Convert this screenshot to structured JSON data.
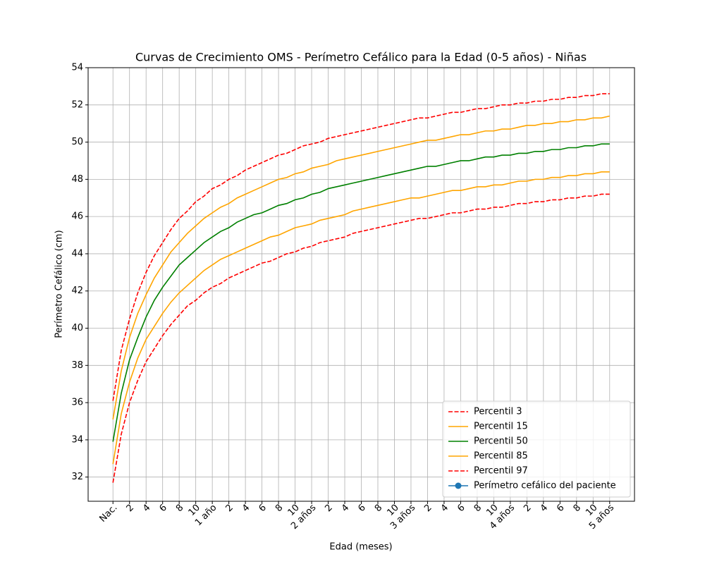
{
  "chart_data": {
    "type": "line",
    "title": "Curvas de Crecimiento OMS - Perímetro Cefálico para la Edad (0-5 años) - Niñas",
    "xlabel": "Edad (meses)",
    "ylabel": "Perímetro Cefálico (cm)",
    "x": [
      0,
      1,
      2,
      3,
      4,
      5,
      6,
      7,
      8,
      9,
      10,
      11,
      12,
      13,
      14,
      15,
      16,
      17,
      18,
      19,
      20,
      21,
      22,
      23,
      24,
      25,
      26,
      27,
      28,
      29,
      30,
      31,
      32,
      33,
      34,
      35,
      36,
      37,
      38,
      39,
      40,
      41,
      42,
      43,
      44,
      45,
      46,
      47,
      48,
      49,
      50,
      51,
      52,
      53,
      54,
      55,
      56,
      57,
      58,
      59,
      60
    ],
    "series": [
      {
        "name": "Percentil 3",
        "color": "#ff0000",
        "linestyle": "dashed",
        "values": [
          31.7,
          34.3,
          36.0,
          37.2,
          38.2,
          38.9,
          39.6,
          40.2,
          40.7,
          41.2,
          41.5,
          41.9,
          42.2,
          42.4,
          42.7,
          42.9,
          43.1,
          43.3,
          43.5,
          43.6,
          43.8,
          44.0,
          44.1,
          44.3,
          44.4,
          44.6,
          44.7,
          44.8,
          44.9,
          45.1,
          45.2,
          45.3,
          45.4,
          45.5,
          45.6,
          45.7,
          45.8,
          45.9,
          45.9,
          46.0,
          46.1,
          46.2,
          46.2,
          46.3,
          46.4,
          46.4,
          46.5,
          46.5,
          46.6,
          46.7,
          46.7,
          46.8,
          46.8,
          46.9,
          46.9,
          47.0,
          47.0,
          47.1,
          47.1,
          47.2,
          47.2
        ]
      },
      {
        "name": "Percentil 15",
        "color": "#ffa500",
        "linestyle": "solid",
        "values": [
          32.7,
          35.4,
          37.1,
          38.4,
          39.4,
          40.1,
          40.8,
          41.4,
          41.9,
          42.3,
          42.7,
          43.1,
          43.4,
          43.7,
          43.9,
          44.1,
          44.3,
          44.5,
          44.7,
          44.9,
          45.0,
          45.2,
          45.4,
          45.5,
          45.6,
          45.8,
          45.9,
          46.0,
          46.1,
          46.3,
          46.4,
          46.5,
          46.6,
          46.7,
          46.8,
          46.9,
          47.0,
          47.0,
          47.1,
          47.2,
          47.3,
          47.4,
          47.4,
          47.5,
          47.6,
          47.6,
          47.7,
          47.7,
          47.8,
          47.9,
          47.9,
          48.0,
          48.0,
          48.1,
          48.1,
          48.2,
          48.2,
          48.3,
          48.3,
          48.4,
          48.4
        ]
      },
      {
        "name": "Percentil 50",
        "color": "#008000",
        "linestyle": "solid",
        "values": [
          33.9,
          36.5,
          38.3,
          39.5,
          40.6,
          41.5,
          42.2,
          42.8,
          43.4,
          43.8,
          44.2,
          44.6,
          44.9,
          45.2,
          45.4,
          45.7,
          45.9,
          46.1,
          46.2,
          46.4,
          46.6,
          46.7,
          46.9,
          47.0,
          47.2,
          47.3,
          47.5,
          47.6,
          47.7,
          47.8,
          47.9,
          48.0,
          48.1,
          48.2,
          48.3,
          48.4,
          48.5,
          48.6,
          48.7,
          48.7,
          48.8,
          48.9,
          49.0,
          49.0,
          49.1,
          49.2,
          49.2,
          49.3,
          49.3,
          49.4,
          49.4,
          49.5,
          49.5,
          49.6,
          49.6,
          49.7,
          49.7,
          49.8,
          49.8,
          49.9,
          49.9
        ]
      },
      {
        "name": "Percentil 85",
        "color": "#ffa500",
        "linestyle": "solid",
        "values": [
          35.1,
          37.7,
          39.5,
          40.8,
          41.8,
          42.7,
          43.4,
          44.1,
          44.6,
          45.1,
          45.5,
          45.9,
          46.2,
          46.5,
          46.7,
          47.0,
          47.2,
          47.4,
          47.6,
          47.8,
          48.0,
          48.1,
          48.3,
          48.4,
          48.6,
          48.7,
          48.8,
          49.0,
          49.1,
          49.2,
          49.3,
          49.4,
          49.5,
          49.6,
          49.7,
          49.8,
          49.9,
          50.0,
          50.1,
          50.1,
          50.2,
          50.3,
          50.4,
          50.4,
          50.5,
          50.6,
          50.6,
          50.7,
          50.7,
          50.8,
          50.9,
          50.9,
          51.0,
          51.0,
          51.1,
          51.1,
          51.2,
          51.2,
          51.3,
          51.3,
          51.4
        ]
      },
      {
        "name": "Percentil 97",
        "color": "#ff0000",
        "linestyle": "dashed",
        "values": [
          36.1,
          38.8,
          40.5,
          41.9,
          43.0,
          43.9,
          44.6,
          45.3,
          45.9,
          46.3,
          46.8,
          47.1,
          47.5,
          47.7,
          48.0,
          48.2,
          48.5,
          48.7,
          48.9,
          49.1,
          49.3,
          49.4,
          49.6,
          49.8,
          49.9,
          50.0,
          50.2,
          50.3,
          50.4,
          50.5,
          50.6,
          50.7,
          50.8,
          50.9,
          51.0,
          51.1,
          51.2,
          51.3,
          51.3,
          51.4,
          51.5,
          51.6,
          51.6,
          51.7,
          51.8,
          51.8,
          51.9,
          52.0,
          52.0,
          52.1,
          52.1,
          52.2,
          52.2,
          52.3,
          52.3,
          52.4,
          52.4,
          52.5,
          52.5,
          52.6,
          52.6
        ]
      },
      {
        "name": "Perímetro cefálico del paciente",
        "color": "#1f77b4",
        "linestyle": "solid",
        "marker": "o",
        "x": [],
        "values": []
      }
    ],
    "xlim": [
      -3,
      63
    ],
    "xticks": [
      {
        "value": 0,
        "label": "Nac."
      },
      2,
      4,
      6,
      8,
      10,
      {
        "value": 12,
        "label": "1 año"
      },
      {
        "value": 14,
        "label": "2"
      },
      {
        "value": 16,
        "label": "4"
      },
      {
        "value": 18,
        "label": "6"
      },
      {
        "value": 20,
        "label": "8"
      },
      {
        "value": 22,
        "label": "10"
      },
      {
        "value": 24,
        "label": "2 años"
      },
      {
        "value": 26,
        "label": "2"
      },
      {
        "value": 28,
        "label": "4"
      },
      {
        "value": 30,
        "label": "6"
      },
      {
        "value": 32,
        "label": "8"
      },
      {
        "value": 34,
        "label": "10"
      },
      {
        "value": 36,
        "label": "3 años"
      },
      {
        "value": 38,
        "label": "2"
      },
      {
        "value": 40,
        "label": "4"
      },
      {
        "value": 42,
        "label": "6"
      },
      {
        "value": 44,
        "label": "8"
      },
      {
        "value": 46,
        "label": "10"
      },
      {
        "value": 48,
        "label": "4 años"
      },
      {
        "value": 50,
        "label": "2"
      },
      {
        "value": 52,
        "label": "4"
      },
      {
        "value": 54,
        "label": "6"
      },
      {
        "value": 56,
        "label": "8"
      },
      {
        "value": 58,
        "label": "10"
      },
      {
        "value": 60,
        "label": "5 años"
      }
    ],
    "ylim": [
      30.7,
      54
    ],
    "yticks": [
      32,
      34,
      36,
      38,
      40,
      42,
      44,
      46,
      48,
      50,
      52,
      54
    ],
    "grid": true,
    "legend": "lower right"
  }
}
